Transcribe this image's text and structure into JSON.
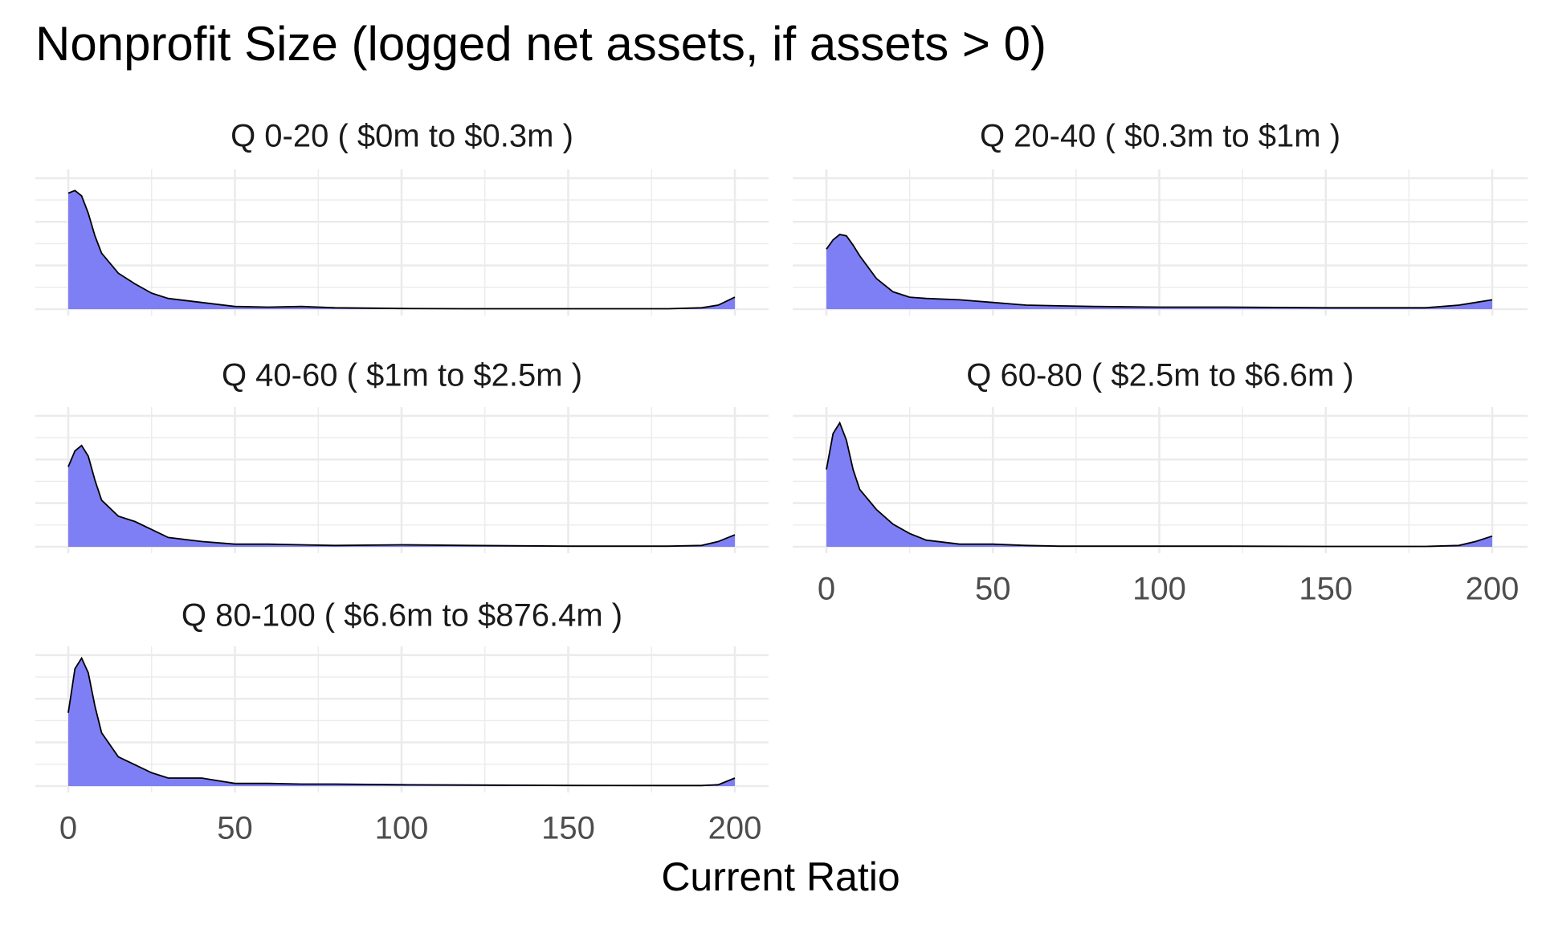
{
  "title": "Nonprofit Size (logged net assets, if assets > 0)",
  "x_axis": {
    "label": "Current Ratio",
    "xlim": [
      0,
      200
    ],
    "xticks": [
      0,
      50,
      100,
      150,
      200
    ]
  },
  "chart_data": [
    {
      "type": "area",
      "title": "Q 0-20   ( $0m to $0.3m )",
      "color": "#7f7ff5",
      "ylim": [
        0,
        1
      ],
      "grid": true,
      "x": [
        0,
        2,
        4,
        6,
        8,
        10,
        15,
        20,
        25,
        30,
        40,
        50,
        60,
        70,
        80,
        100,
        120,
        150,
        180,
        190,
        195,
        200
      ],
      "values": [
        0.87,
        0.89,
        0.85,
        0.72,
        0.55,
        0.42,
        0.27,
        0.19,
        0.12,
        0.08,
        0.05,
        0.02,
        0.015,
        0.02,
        0.01,
        0.005,
        0.003,
        0.003,
        0.003,
        0.01,
        0.03,
        0.09
      ]
    },
    {
      "type": "area",
      "title": "Q 20-40   ( $0.3m to $1m )",
      "color": "#7f7ff5",
      "ylim": [
        0,
        1
      ],
      "grid": true,
      "x": [
        0,
        2,
        4,
        6,
        8,
        10,
        15,
        20,
        25,
        30,
        40,
        50,
        60,
        70,
        80,
        100,
        120,
        150,
        180,
        190,
        195,
        200
      ],
      "values": [
        0.45,
        0.52,
        0.56,
        0.55,
        0.48,
        0.4,
        0.23,
        0.13,
        0.09,
        0.08,
        0.07,
        0.05,
        0.03,
        0.025,
        0.02,
        0.015,
        0.015,
        0.01,
        0.01,
        0.03,
        0.05,
        0.07
      ]
    },
    {
      "type": "area",
      "title": "Q 40-60   ( $1m to $2.5m )",
      "color": "#7f7ff5",
      "ylim": [
        0,
        1
      ],
      "grid": true,
      "x": [
        0,
        2,
        4,
        6,
        8,
        10,
        15,
        20,
        25,
        30,
        40,
        50,
        60,
        70,
        80,
        100,
        120,
        150,
        180,
        190,
        195,
        200
      ],
      "values": [
        0.6,
        0.72,
        0.76,
        0.68,
        0.5,
        0.35,
        0.23,
        0.19,
        0.13,
        0.07,
        0.04,
        0.02,
        0.02,
        0.015,
        0.01,
        0.015,
        0.01,
        0.005,
        0.005,
        0.01,
        0.04,
        0.09
      ]
    },
    {
      "type": "area",
      "title": "Q 60-80   ( $2.5m to $6.6m )",
      "color": "#7f7ff5",
      "ylim": [
        0,
        1
      ],
      "grid": true,
      "x": [
        0,
        2,
        4,
        6,
        8,
        10,
        15,
        20,
        25,
        30,
        40,
        50,
        60,
        70,
        80,
        100,
        120,
        150,
        180,
        190,
        195,
        200
      ],
      "values": [
        0.58,
        0.85,
        0.93,
        0.8,
        0.58,
        0.43,
        0.28,
        0.17,
        0.1,
        0.05,
        0.02,
        0.02,
        0.01,
        0.005,
        0.005,
        0.005,
        0.005,
        0.003,
        0.003,
        0.01,
        0.04,
        0.08
      ]
    },
    {
      "type": "area",
      "title": "Q 80-100   ( $6.6m to $876.4m )",
      "color": "#7f7ff5",
      "ylim": [
        0,
        1
      ],
      "grid": true,
      "x": [
        0,
        2,
        4,
        6,
        8,
        10,
        15,
        20,
        25,
        30,
        40,
        50,
        60,
        70,
        80,
        100,
        120,
        150,
        180,
        190,
        195,
        200
      ],
      "values": [
        0.55,
        0.88,
        0.96,
        0.85,
        0.6,
        0.4,
        0.22,
        0.16,
        0.1,
        0.06,
        0.06,
        0.02,
        0.02,
        0.015,
        0.015,
        0.01,
        0.008,
        0.005,
        0.004,
        0.004,
        0.01,
        0.06
      ]
    }
  ]
}
